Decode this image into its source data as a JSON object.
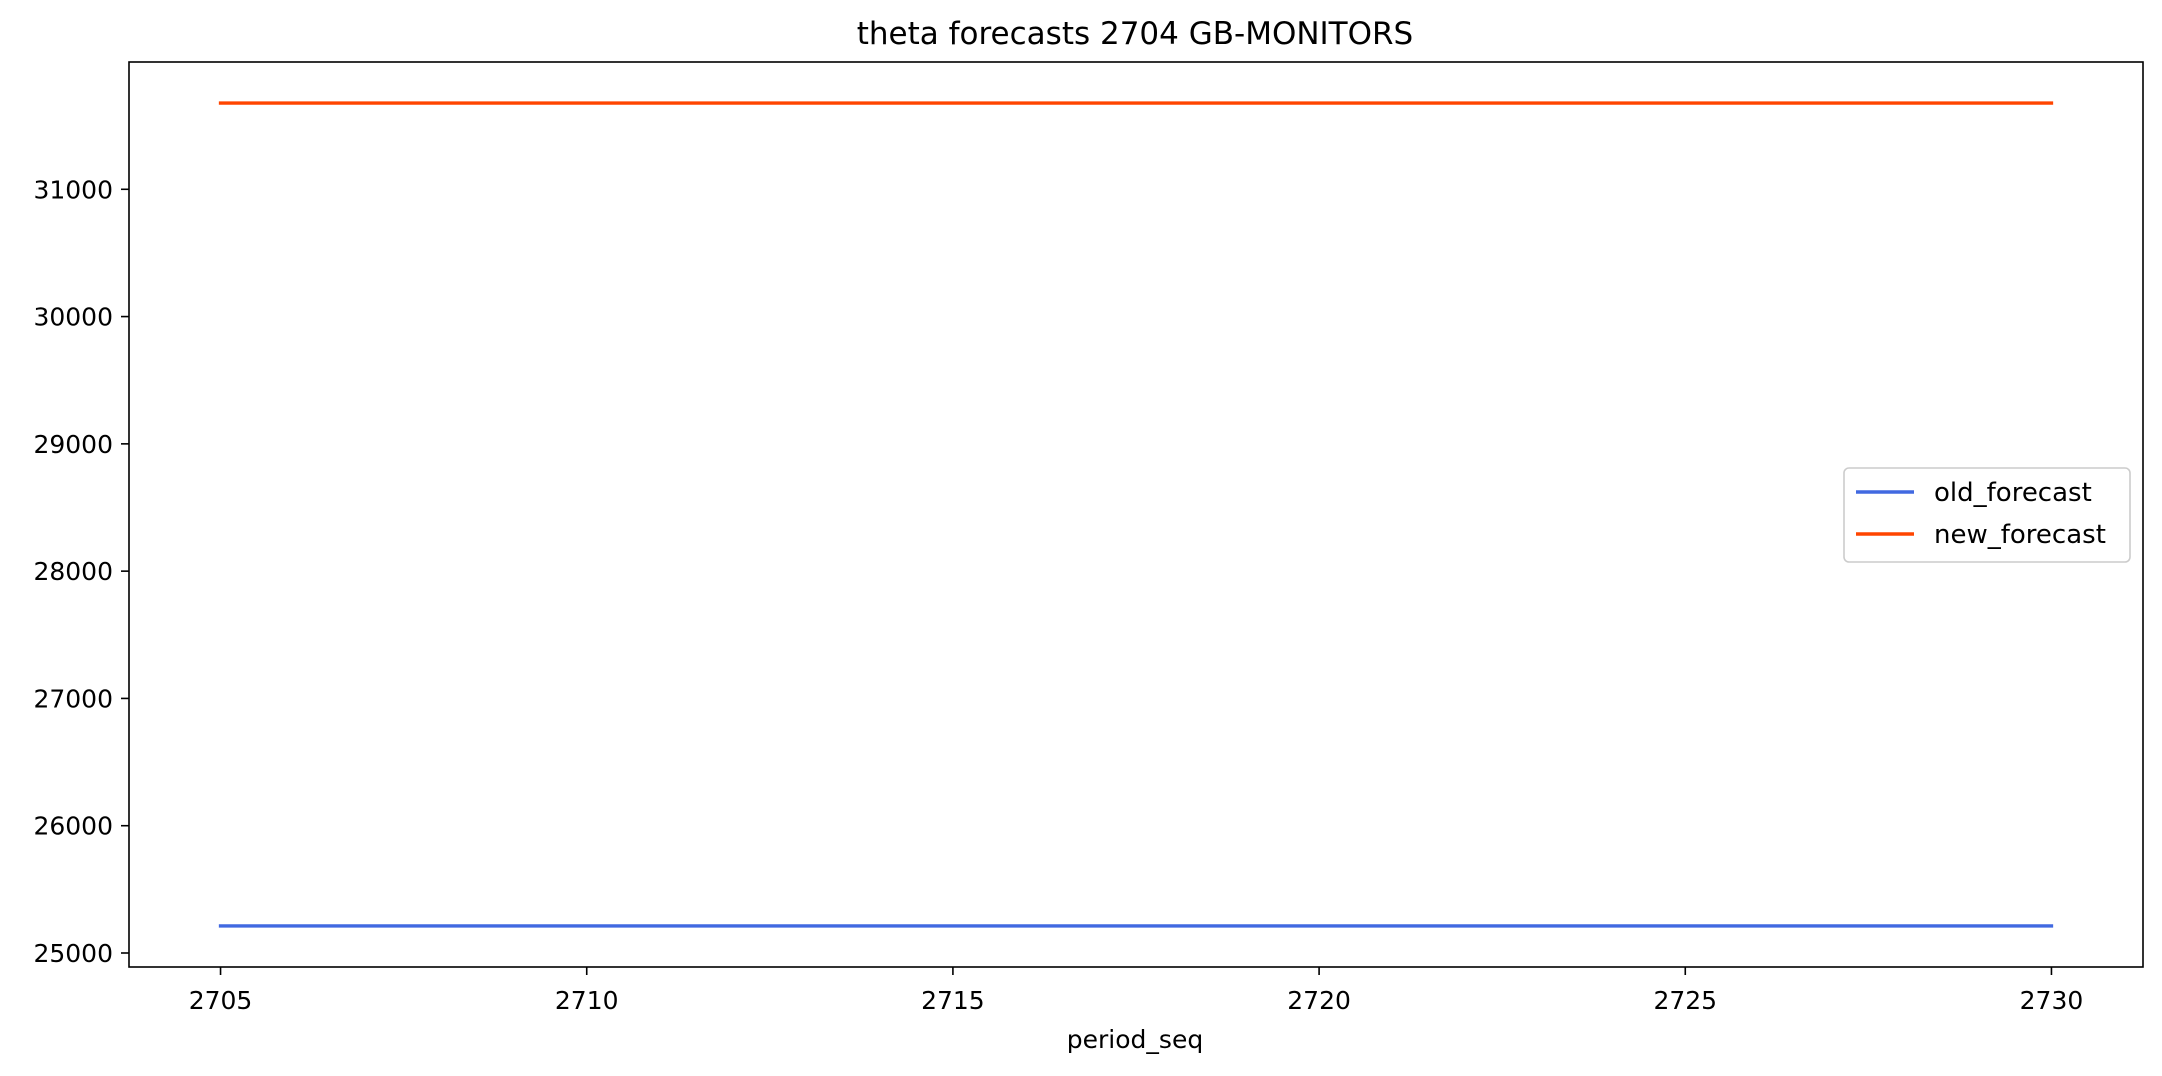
{
  "chart_data": {
    "type": "line",
    "title": "theta forecasts 2704 GB-MONITORS",
    "xlabel": "period_seq",
    "ylabel": "",
    "x": [
      2705,
      2706,
      2707,
      2708,
      2709,
      2710,
      2711,
      2712,
      2713,
      2714,
      2715,
      2716,
      2717,
      2718,
      2719,
      2720,
      2721,
      2722,
      2723,
      2724,
      2725,
      2726,
      2727,
      2728,
      2729,
      2730
    ],
    "series": [
      {
        "name": "old_forecast",
        "color": "#4169e1",
        "values": [
          25213,
          25213,
          25213,
          25213,
          25213,
          25213,
          25213,
          25213,
          25213,
          25213,
          25213,
          25213,
          25213,
          25213,
          25213,
          25213,
          25213,
          25213,
          25213,
          25213,
          25213,
          25213,
          25213,
          25213,
          25213,
          25213
        ]
      },
      {
        "name": "new_forecast",
        "color": "#ff4500",
        "values": [
          31677,
          31677,
          31677,
          31677,
          31677,
          31677,
          31677,
          31677,
          31677,
          31677,
          31677,
          31677,
          31677,
          31677,
          31677,
          31677,
          31677,
          31677,
          31677,
          31677,
          31677,
          31677,
          31677,
          31677,
          31677,
          31677
        ]
      }
    ],
    "xlim": [
      2703.75,
      2731.25
    ],
    "ylim": [
      24890,
      32000
    ],
    "xticks": [
      2705,
      2710,
      2715,
      2720,
      2725,
      2730
    ],
    "xtick_labels": [
      "2705",
      "2710",
      "2715",
      "2720",
      "2725",
      "2730"
    ],
    "yticks": [
      25000,
      26000,
      27000,
      28000,
      29000,
      30000,
      31000
    ],
    "ytick_labels": [
      "25000",
      "26000",
      "27000",
      "28000",
      "29000",
      "30000",
      "31000"
    ],
    "grid": false,
    "legend_position": "center-right"
  }
}
